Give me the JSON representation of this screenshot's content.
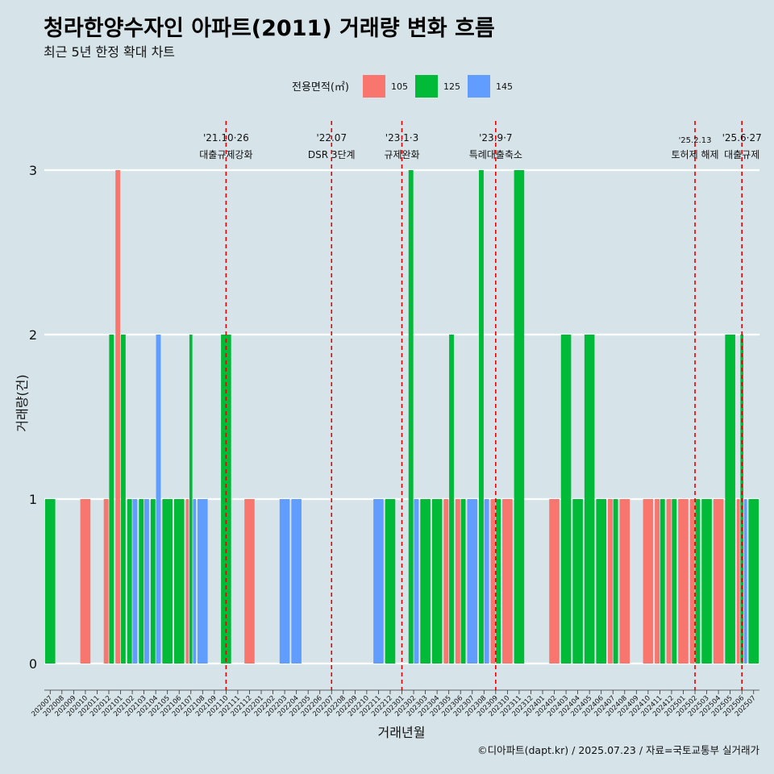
{
  "title": "청라한양수자인 아파트(2011) 거래량 변화 흐름",
  "subtitle": "최근 5년 한정 확대 차트",
  "caption": "©디아파트(dapt.kr) / 2025.07.23 / 자료=국토교통부 실거래가",
  "legend": {
    "title": "전용면적(㎡)",
    "items": [
      {
        "label": "105",
        "color": "#f8766d"
      },
      {
        "label": "125",
        "color": "#00ba38"
      },
      {
        "label": "145",
        "color": "#619cff"
      }
    ]
  },
  "chart_data": {
    "type": "bar",
    "stacking": "dodge",
    "xlabel": "거래년월",
    "ylabel": "거래량(건)",
    "ylim": [
      0,
      3
    ],
    "yticks": [
      0,
      1,
      2,
      3
    ],
    "grid": "horizontal",
    "legend_position": "top",
    "categories": [
      "202007",
      "202008",
      "202009",
      "202010",
      "202011",
      "202012",
      "202101",
      "202102",
      "202103",
      "202104",
      "202105",
      "202106",
      "202107",
      "202108",
      "202109",
      "202110",
      "202111",
      "202112",
      "202201",
      "202202",
      "202203",
      "202204",
      "202205",
      "202206",
      "202207",
      "202208",
      "202209",
      "202210",
      "202211",
      "202212",
      "202301",
      "202302",
      "202303",
      "202304",
      "202305",
      "202306",
      "202307",
      "202308",
      "202309",
      "202310",
      "202311",
      "202312",
      "202401",
      "202402",
      "202403",
      "202404",
      "202405",
      "202406",
      "202407",
      "202408",
      "202409",
      "202410",
      "202411",
      "202412",
      "202501",
      "202502",
      "202503",
      "202504",
      "202505",
      "202506",
      "202507"
    ],
    "series": [
      {
        "name": "105",
        "color": "#f8766d",
        "values": [
          0,
          0,
          0,
          1,
          0,
          1,
          3,
          0,
          0,
          0,
          0,
          0,
          1,
          0,
          0,
          0,
          0,
          1,
          0,
          0,
          0,
          0,
          0,
          0,
          0,
          0,
          0,
          0,
          0,
          0,
          0,
          0,
          0,
          0,
          1,
          1,
          0,
          0,
          1,
          1,
          0,
          0,
          0,
          1,
          0,
          0,
          0,
          0,
          1,
          1,
          0,
          1,
          1,
          1,
          1,
          1,
          0,
          1,
          0,
          1,
          0
        ]
      },
      {
        "name": "125",
        "color": "#00ba38",
        "values": [
          1,
          0,
          0,
          0,
          0,
          2,
          2,
          1,
          1,
          1,
          1,
          1,
          2,
          0,
          0,
          2,
          0,
          0,
          0,
          0,
          0,
          0,
          0,
          0,
          0,
          0,
          0,
          0,
          0,
          1,
          0,
          3,
          1,
          1,
          2,
          1,
          0,
          3,
          1,
          0,
          3,
          0,
          0,
          0,
          2,
          1,
          2,
          1,
          1,
          0,
          0,
          0,
          1,
          1,
          0,
          1,
          1,
          0,
          2,
          2,
          1
        ]
      },
      {
        "name": "145",
        "color": "#619cff",
        "values": [
          0,
          0,
          0,
          0,
          0,
          0,
          0,
          1,
          1,
          2,
          0,
          0,
          1,
          1,
          0,
          0,
          0,
          0,
          0,
          0,
          1,
          1,
          0,
          0,
          0,
          0,
          0,
          0,
          1,
          0,
          0,
          1,
          0,
          0,
          0,
          0,
          1,
          1,
          0,
          0,
          0,
          0,
          0,
          0,
          0,
          0,
          0,
          0,
          0,
          0,
          0,
          0,
          0,
          0,
          0,
          0,
          0,
          0,
          0,
          1,
          0
        ]
      }
    ],
    "events": [
      {
        "date": "'21.10·26",
        "label": "대출규제강화",
        "month": "202110"
      },
      {
        "date": "'22.07",
        "label": "DSR 3단계",
        "month": "202207"
      },
      {
        "date": "'23.1·3",
        "label": "규제완화",
        "month": "202301"
      },
      {
        "date": "'23.9·7",
        "label": "특례대출축소",
        "month": "202309"
      },
      {
        "date": "'25.2.13",
        "label": "토허제 해제",
        "month": "202502"
      },
      {
        "date": "'25.6·27",
        "label": "대출규제",
        "month": "202506"
      }
    ]
  }
}
